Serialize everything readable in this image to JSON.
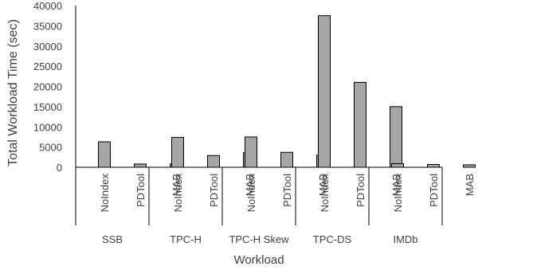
{
  "chart_data": {
    "type": "bar",
    "title": "",
    "ylabel": "Total Workload Time (sec)",
    "xlabel": "Workload",
    "ylim": [
      0,
      40000
    ],
    "yticks": [
      0,
      5000,
      10000,
      15000,
      20000,
      25000,
      30000,
      35000,
      40000
    ],
    "grid": false,
    "bar_color": "#a6a6a6",
    "bar_edge_color": "#000000",
    "groups": [
      {
        "name": "SSB",
        "bars": [
          {
            "label": "NoIndex",
            "value": 6300
          },
          {
            "label": "PDTool",
            "value": 800
          },
          {
            "label": "MAB",
            "value": 800
          }
        ]
      },
      {
        "name": "TPC-H",
        "bars": [
          {
            "label": "NoIndex",
            "value": 7400
          },
          {
            "label": "PDTool",
            "value": 2900
          },
          {
            "label": "MAB",
            "value": 3600
          }
        ]
      },
      {
        "name": "TPC-H Skew",
        "bars": [
          {
            "label": "NoIndex",
            "value": 7500
          },
          {
            "label": "PDTool",
            "value": 3700
          },
          {
            "label": "MAB",
            "value": 3000
          }
        ]
      },
      {
        "name": "TPC-DS",
        "bars": [
          {
            "label": "NoIndex",
            "value": 37500
          },
          {
            "label": "PDTool",
            "value": 21000
          },
          {
            "label": "MAB",
            "value": 15000
          }
        ]
      },
      {
        "name": "IMDb",
        "bars": [
          {
            "label": "NoIndex",
            "value": 900
          },
          {
            "label": "PDTool",
            "value": 700
          },
          {
            "label": "MAB",
            "value": 600
          }
        ]
      }
    ]
  }
}
